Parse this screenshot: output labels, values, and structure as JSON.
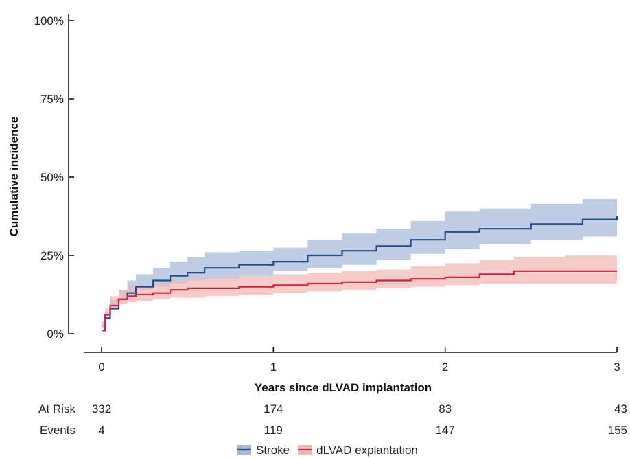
{
  "chart_data": {
    "type": "line",
    "subtype": "step cumulative incidence with confidence bands",
    "xlabel": "Years since dLVAD implantation",
    "ylabel": "Cumulative incidence",
    "xlim": [
      0,
      3
    ],
    "ylim": [
      0,
      1
    ],
    "x_ticks": [
      0,
      1,
      2,
      3
    ],
    "x_tick_labels": [
      "0",
      "1",
      "2",
      "3"
    ],
    "y_ticks": [
      0,
      0.25,
      0.5,
      0.75,
      1
    ],
    "y_tick_labels": [
      "0%",
      "25%",
      "50%",
      "75%",
      "100%"
    ],
    "grid": false,
    "legend_position": "bottom",
    "series": [
      {
        "name": "Stroke",
        "color": "#1f4e89",
        "band_color": "#a7b8d8",
        "x": [
          0,
          0.02,
          0.05,
          0.1,
          0.15,
          0.2,
          0.3,
          0.4,
          0.5,
          0.6,
          0.8,
          1.0,
          1.2,
          1.4,
          1.6,
          1.8,
          2.0,
          2.2,
          2.5,
          2.8,
          3.0
        ],
        "y": [
          0.01,
          0.05,
          0.08,
          0.11,
          0.13,
          0.15,
          0.17,
          0.185,
          0.195,
          0.21,
          0.22,
          0.23,
          0.25,
          0.265,
          0.28,
          0.3,
          0.325,
          0.335,
          0.35,
          0.365,
          0.375
        ],
        "lower": [
          0.005,
          0.03,
          0.06,
          0.08,
          0.1,
          0.12,
          0.14,
          0.15,
          0.16,
          0.17,
          0.175,
          0.185,
          0.2,
          0.21,
          0.22,
          0.235,
          0.255,
          0.27,
          0.285,
          0.3,
          0.31
        ],
        "upper": [
          0.02,
          0.07,
          0.11,
          0.14,
          0.17,
          0.19,
          0.21,
          0.23,
          0.245,
          0.26,
          0.265,
          0.275,
          0.3,
          0.32,
          0.335,
          0.36,
          0.39,
          0.4,
          0.415,
          0.43,
          0.44
        ]
      },
      {
        "name": "dLVAD explantation",
        "color": "#d0213f",
        "band_color": "#f2b9b5",
        "x": [
          0,
          0.02,
          0.05,
          0.1,
          0.15,
          0.2,
          0.3,
          0.4,
          0.5,
          0.6,
          0.8,
          1.0,
          1.2,
          1.4,
          1.6,
          1.8,
          2.0,
          2.2,
          2.4,
          2.7,
          3.0
        ],
        "y": [
          0.01,
          0.06,
          0.09,
          0.11,
          0.12,
          0.125,
          0.13,
          0.14,
          0.145,
          0.145,
          0.15,
          0.155,
          0.16,
          0.165,
          0.17,
          0.175,
          0.18,
          0.19,
          0.2,
          0.2,
          0.2
        ],
        "lower": [
          0.005,
          0.04,
          0.07,
          0.09,
          0.095,
          0.1,
          0.105,
          0.11,
          0.115,
          0.115,
          0.12,
          0.125,
          0.13,
          0.135,
          0.14,
          0.145,
          0.15,
          0.155,
          0.16,
          0.16,
          0.16
        ],
        "upper": [
          0.02,
          0.08,
          0.12,
          0.14,
          0.15,
          0.155,
          0.16,
          0.17,
          0.175,
          0.18,
          0.185,
          0.19,
          0.195,
          0.2,
          0.205,
          0.215,
          0.225,
          0.235,
          0.245,
          0.25,
          0.25
        ]
      }
    ],
    "risk_table": {
      "x": [
        0,
        1,
        2,
        3
      ],
      "rows": [
        {
          "label": "At Risk",
          "values": [
            "332",
            "174",
            "83",
            "43"
          ]
        },
        {
          "label": "Events",
          "values": [
            "4",
            "119",
            "147",
            "155"
          ]
        }
      ]
    }
  }
}
